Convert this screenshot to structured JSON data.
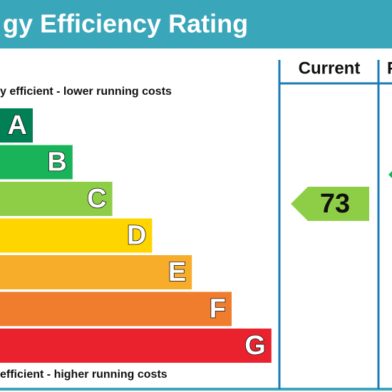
{
  "title": "gy Efficiency Rating",
  "top_note": "y efficient - lower running costs",
  "bottom_note": "efficient - higher running costs",
  "columns": [
    "Current",
    "P"
  ],
  "bands": [
    {
      "letter": "A",
      "color": "#008054"
    },
    {
      "letter": "B",
      "color": "#19b459"
    },
    {
      "letter": "C",
      "color": "#8dce46"
    },
    {
      "letter": "D",
      "color": "#ffd500"
    },
    {
      "letter": "E",
      "color": "#f7ac2a"
    },
    {
      "letter": "F",
      "color": "#ef7d2d"
    },
    {
      "letter": "G",
      "color": "#e9222e"
    }
  ],
  "current": {
    "value": "73",
    "color": "#8dce46"
  }
}
